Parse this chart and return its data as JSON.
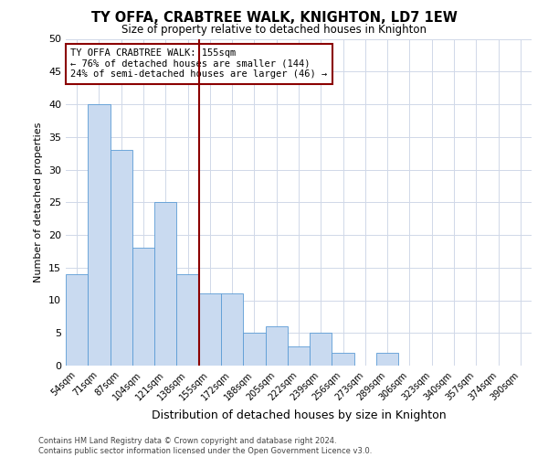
{
  "title": "TY OFFA, CRABTREE WALK, KNIGHTON, LD7 1EW",
  "subtitle": "Size of property relative to detached houses in Knighton",
  "xlabel": "Distribution of detached houses by size in Knighton",
  "ylabel": "Number of detached properties",
  "bar_labels": [
    "54sqm",
    "71sqm",
    "87sqm",
    "104sqm",
    "121sqm",
    "138sqm",
    "155sqm",
    "172sqm",
    "188sqm",
    "205sqm",
    "222sqm",
    "239sqm",
    "256sqm",
    "273sqm",
    "289sqm",
    "306sqm",
    "323sqm",
    "340sqm",
    "357sqm",
    "374sqm",
    "390sqm"
  ],
  "bar_values": [
    14,
    40,
    33,
    18,
    25,
    14,
    11,
    11,
    5,
    6,
    3,
    5,
    2,
    0,
    2,
    0,
    0,
    0,
    0,
    0,
    0
  ],
  "bar_color": "#c9daf0",
  "bar_edge_color": "#5b9bd5",
  "highlight_index": 6,
  "highlight_line_color": "#8b0000",
  "annotation_line1": "TY OFFA CRABTREE WALK: 155sqm",
  "annotation_line2": "← 76% of detached houses are smaller (144)",
  "annotation_line3": "24% of semi-detached houses are larger (46) →",
  "annotation_box_color": "#8b0000",
  "ylim": [
    0,
    50
  ],
  "yticks": [
    0,
    5,
    10,
    15,
    20,
    25,
    30,
    35,
    40,
    45,
    50
  ],
  "footer_line1": "Contains HM Land Registry data © Crown copyright and database right 2024.",
  "footer_line2": "Contains public sector information licensed under the Open Government Licence v3.0.",
  "background_color": "#ffffff",
  "grid_color": "#d0d8e8"
}
